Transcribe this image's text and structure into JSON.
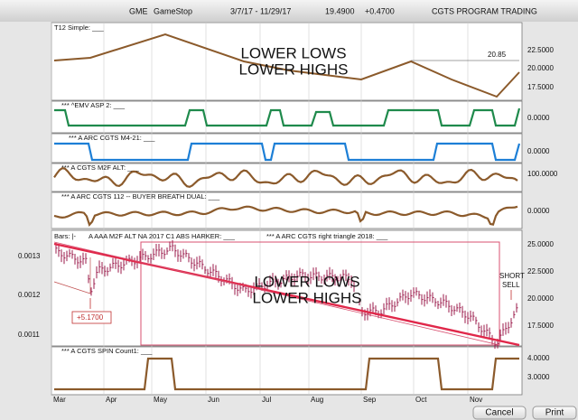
{
  "header": {
    "symbol": "GME",
    "name": "GameStop",
    "range": "3/7/17 - 11/29/17",
    "price": "19.4900",
    "change": "+0.4700",
    "study": "CGTS PROGRAM TRADING"
  },
  "panels": [
    {
      "label": "T12 Simple: ___",
      "texts": [
        "LOWER LOWS",
        "LOWER HIGHS",
        "20.85"
      ],
      "ticks": [
        "22.5000",
        "20.0000",
        "17.5000"
      ]
    },
    {
      "label": "***  ^EMV ASP 2: ___",
      "ticks": [
        "0.0000"
      ]
    },
    {
      "label": "*** A ARC CGTS M4-21: ___",
      "ticks": [
        "0.0000"
      ]
    },
    {
      "label": "*** A CGTS M2F ALT: ___",
      "ticks": [
        "100.0000"
      ]
    },
    {
      "label": "*** A ARC CGTS 112 -- BUYER BREATH DUAL: ___",
      "ticks": [
        "0.0000"
      ]
    },
    {
      "label": "Bars: |-",
      "label2": "A AAA  M2F ALT NA 2017 C1 ABS HARKER: ___",
      "label3": "*** A ARC CGTS right triangle 2018: ___",
      "texts": [
        "LOWER LOWS",
        "LOWER HIGHS",
        "SHORT",
        "SELL",
        "+5.1700"
      ],
      "left_ticks": [
        "0.0013",
        "0.0012",
        "0.0011"
      ],
      "ticks": [
        "25.0000",
        "22.5000",
        "20.0000",
        "17.5000"
      ]
    },
    {
      "label": "*** A CGTS SPIN Count1: ___",
      "ticks": [
        "4.0000",
        "3.0000"
      ]
    }
  ],
  "months": [
    "Mar",
    "Apr",
    "May",
    "Jun",
    "Jul",
    "Aug",
    "Sep",
    "Oct",
    "Nov"
  ],
  "buttons": [
    "Cancel",
    "Print"
  ]
}
